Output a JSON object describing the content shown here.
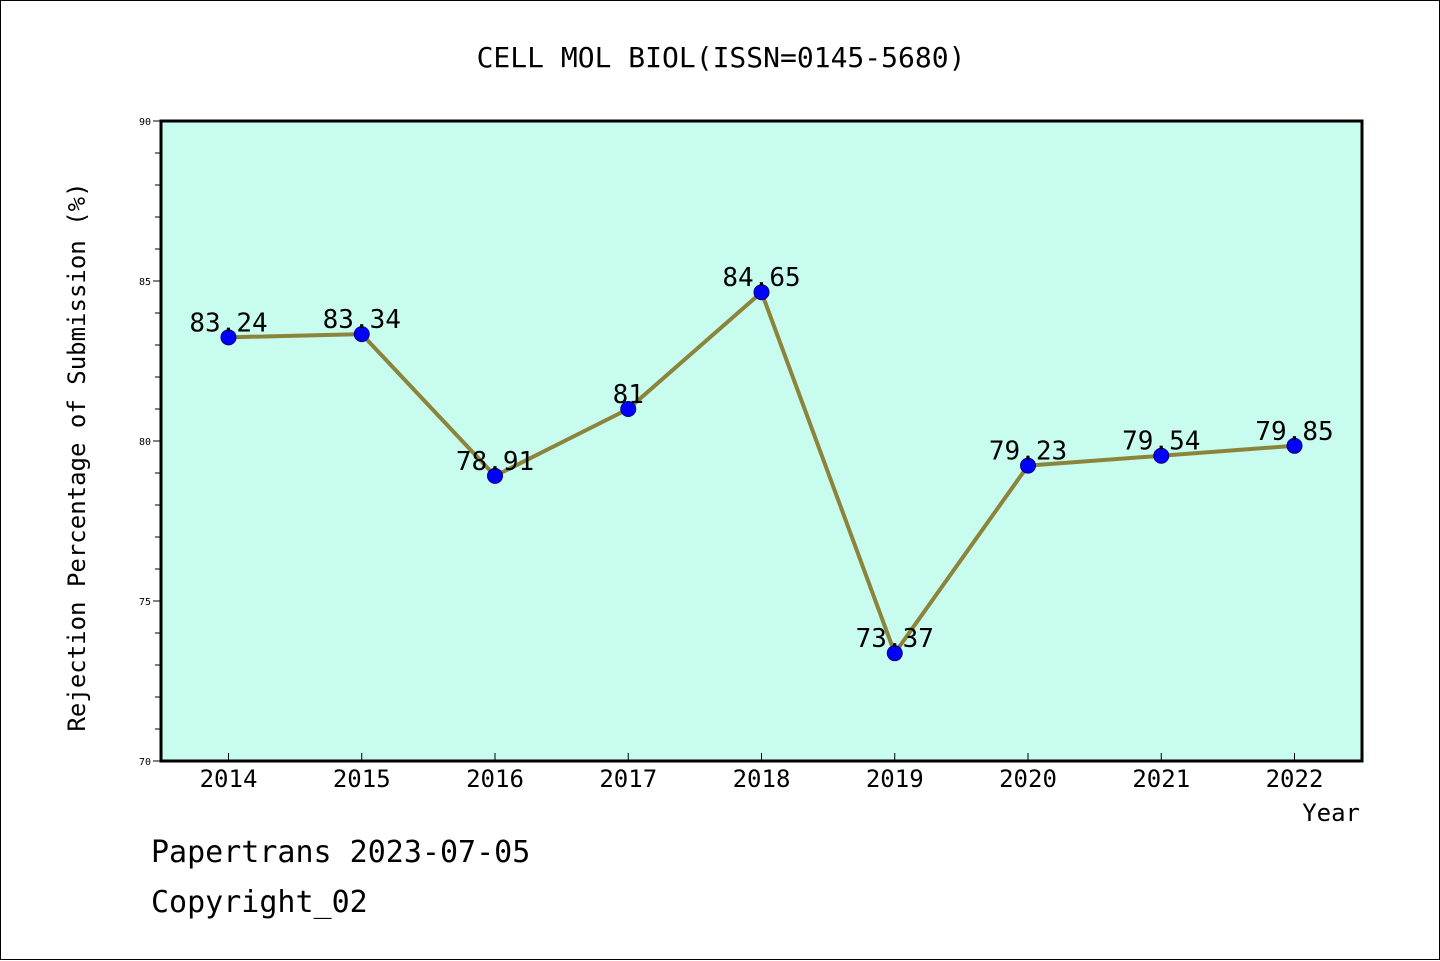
{
  "colors": {
    "plot_background": "#c8fcee",
    "line": "#8b843a",
    "marker": "#0000ff",
    "marker_edge": "#00007f"
  },
  "footer": {
    "line1": "Papertrans 2023-07-05",
    "line2": "Copyright_02"
  },
  "chart_data": {
    "type": "line",
    "title": "CELL MOL BIOL(ISSN=0145-5680)",
    "xlabel": "Year",
    "ylabel": "Rejection Percentage of Submission (%)",
    "categories": [
      "2014",
      "2015",
      "2016",
      "2017",
      "2018",
      "2019",
      "2020",
      "2021",
      "2022"
    ],
    "series": [
      {
        "values": [
          83.24,
          83.34,
          78.91,
          81,
          84.65,
          73.37,
          79.23,
          79.54,
          79.85
        ]
      }
    ],
    "data_labels": [
      "83.24",
      "83.34",
      "78.91",
      "81",
      "84.65",
      "73.37",
      "79.23",
      "79.54",
      "79.85"
    ],
    "ylim": [
      70,
      90
    ],
    "yticks": [
      "70",
      "75",
      "80",
      "85",
      "90"
    ],
    "grid": false,
    "legend": "none"
  }
}
